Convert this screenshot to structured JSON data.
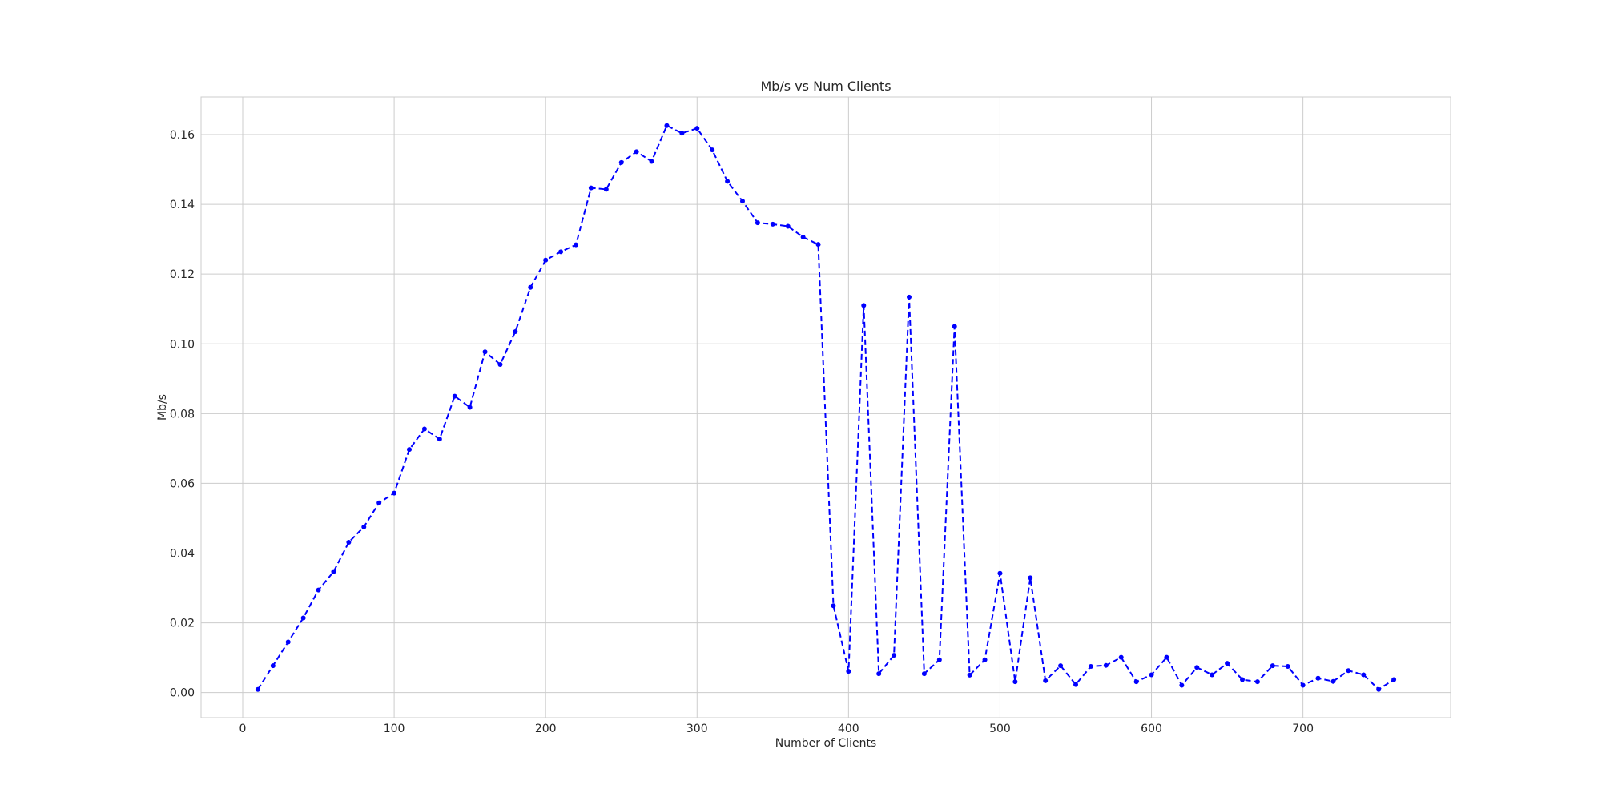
{
  "chart_data": {
    "type": "line",
    "title": "Mb/s vs Num Clients",
    "xlabel": "Number of Clients",
    "ylabel": "Mb/s",
    "xlim": [
      -27.5,
      797.5
    ],
    "ylim": [
      -0.0072,
      0.1708
    ],
    "xticks": [
      0,
      100,
      200,
      300,
      400,
      500,
      600,
      700
    ],
    "yticks": [
      0.0,
      0.02,
      0.04,
      0.06,
      0.08,
      0.1,
      0.12,
      0.14,
      0.16
    ],
    "ytick_labels": [
      "0.00",
      "0.02",
      "0.04",
      "0.06",
      "0.08",
      "0.10",
      "0.12",
      "0.14",
      "0.16"
    ],
    "grid": true,
    "series": [
      {
        "color": "#0000ff",
        "line_style": "dashed",
        "marker": "circle",
        "x": [
          10,
          20,
          30,
          40,
          50,
          60,
          70,
          80,
          90,
          100,
          110,
          120,
          130,
          140,
          150,
          160,
          170,
          180,
          190,
          200,
          210,
          220,
          230,
          240,
          250,
          260,
          270,
          280,
          290,
          300,
          310,
          320,
          330,
          340,
          350,
          360,
          370,
          380,
          390,
          400,
          410,
          420,
          430,
          440,
          450,
          460,
          470,
          480,
          490,
          500,
          510,
          520,
          530,
          540,
          550,
          560,
          570,
          580,
          590,
          600,
          610,
          620,
          630,
          640,
          650,
          660,
          670,
          680,
          690,
          700,
          710,
          720,
          730,
          740,
          750,
          760
        ],
        "y": [
          0.0009,
          0.0077,
          0.0145,
          0.0214,
          0.0294,
          0.0347,
          0.0431,
          0.0475,
          0.0544,
          0.0572,
          0.0697,
          0.0756,
          0.0727,
          0.085,
          0.0818,
          0.0977,
          0.0941,
          0.1035,
          0.1162,
          0.124,
          0.1264,
          0.1284,
          0.1447,
          0.1443,
          0.152,
          0.1551,
          0.1523,
          0.1626,
          0.1604,
          0.1618,
          0.1556,
          0.1466,
          0.1409,
          0.1347,
          0.1343,
          0.1337,
          0.1306,
          0.1285,
          0.0249,
          0.0061,
          0.111,
          0.0054,
          0.0107,
          0.1134,
          0.0054,
          0.0094,
          0.105,
          0.005,
          0.0094,
          0.0342,
          0.0031,
          0.0329,
          0.0034,
          0.0077,
          0.0023,
          0.0075,
          0.0078,
          0.0101,
          0.0031,
          0.0051,
          0.0101,
          0.0021,
          0.0072,
          0.0051,
          0.0084,
          0.0037,
          0.0031,
          0.0077,
          0.0075,
          0.0021,
          0.0041,
          0.0032,
          0.0063,
          0.0051,
          0.0009,
          0.0037
        ]
      }
    ]
  }
}
